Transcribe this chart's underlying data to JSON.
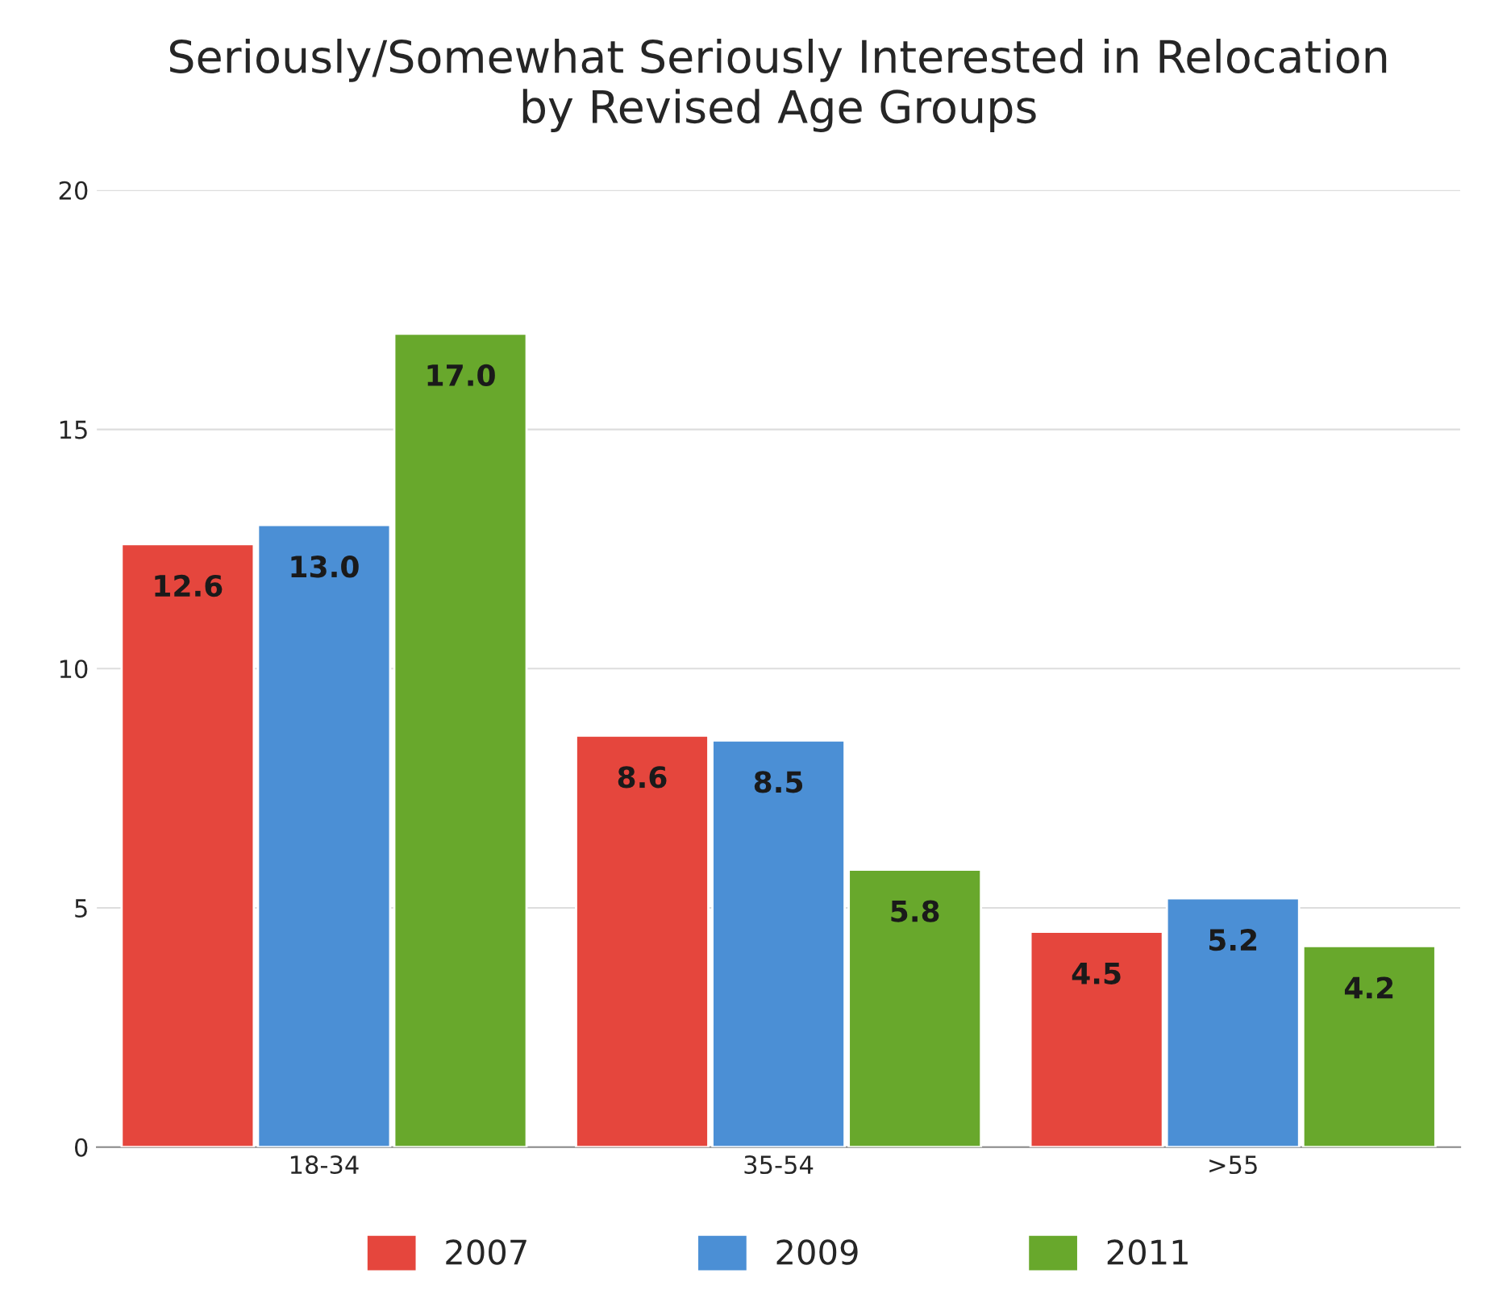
{
  "chart_data": {
    "type": "bar",
    "title": "Seriously/Somewhat Seriously Interested in Relocation\nby Revised Age Groups",
    "categories": [
      "18-34",
      "35-54",
      ">55"
    ],
    "series": [
      {
        "name": "2007",
        "color": "#e5463d",
        "values": [
          12.6,
          8.6,
          4.5
        ]
      },
      {
        "name": "2009",
        "color": "#4b8fd5",
        "values": [
          13.0,
          8.5,
          5.2
        ]
      },
      {
        "name": "2011",
        "color": "#68a82c",
        "values": [
          17.0,
          5.8,
          4.2
        ]
      }
    ],
    "value_labels": [
      [
        "12.6",
        "8.6",
        "4.5"
      ],
      [
        "13.0",
        "8.5",
        "5.2"
      ],
      [
        "17.0",
        "5.8",
        "4.2"
      ]
    ],
    "ylim": [
      0,
      20
    ],
    "yticks": [
      0,
      5,
      10,
      15,
      20
    ],
    "grid": "y",
    "legend": "bottom"
  }
}
